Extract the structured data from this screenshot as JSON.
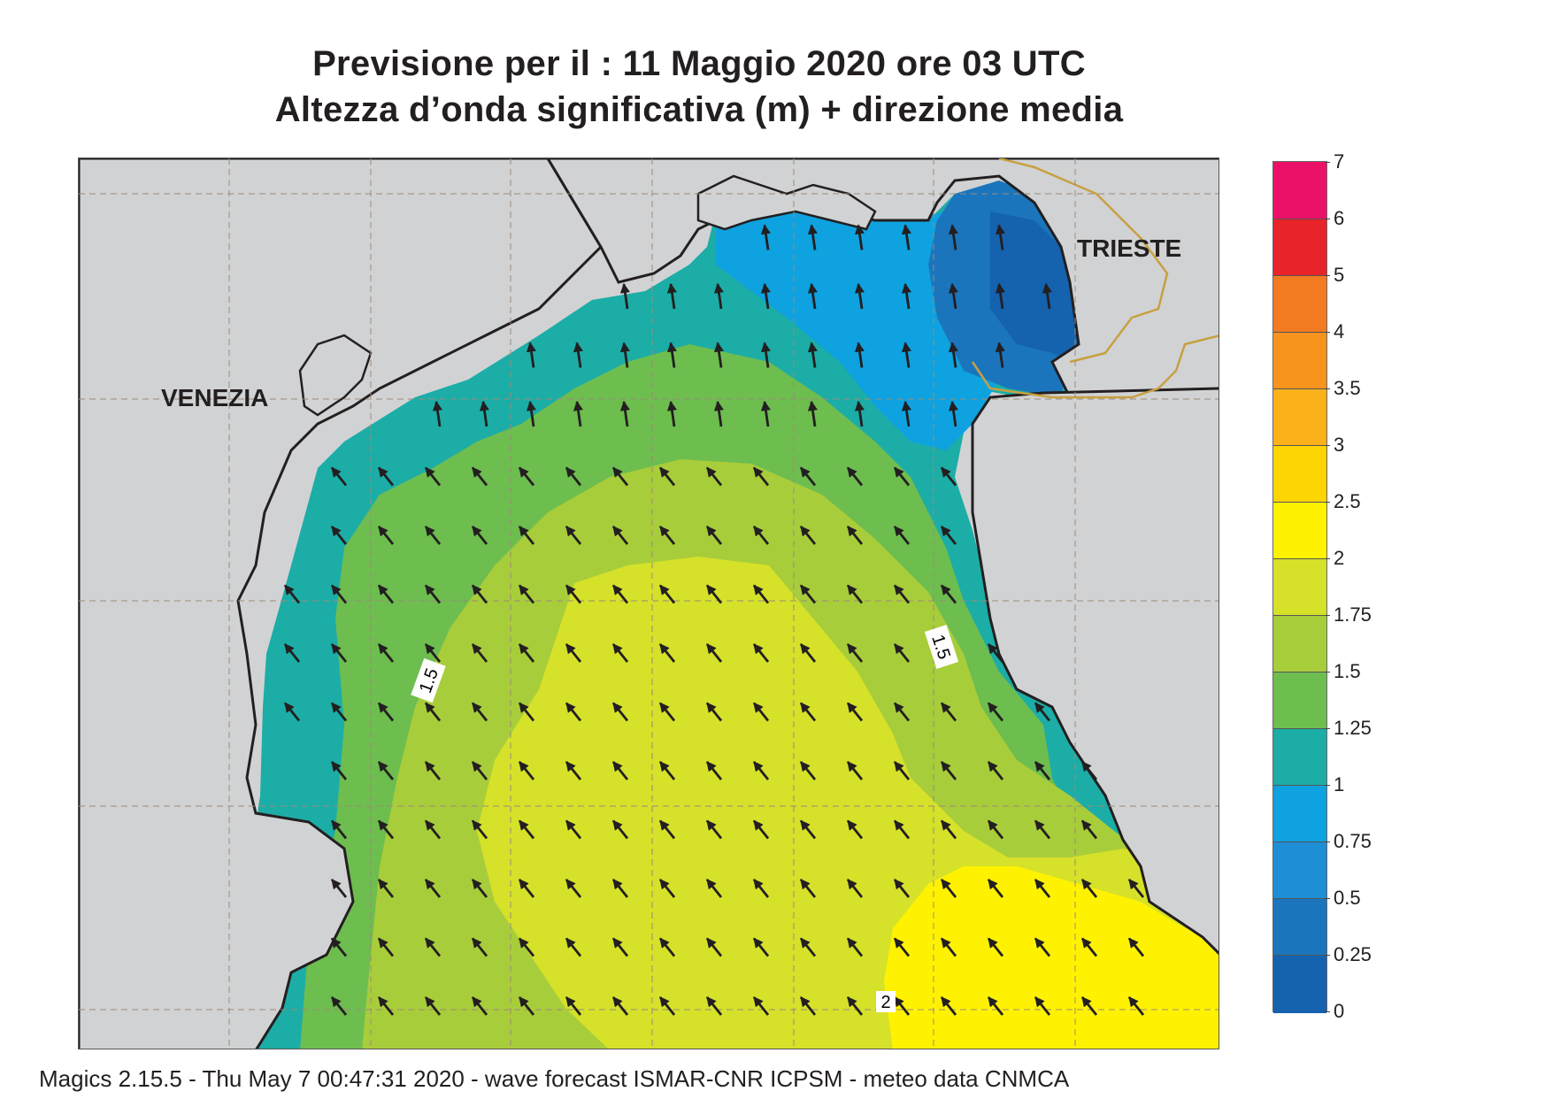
{
  "title": {
    "line1": "Previsione per il  :  11   Maggio  2020   ore 03 UTC",
    "line2": "Altezza d’onda significativa (m) + direzione media"
  },
  "map": {
    "cities": [
      {
        "name": "VENEZIA"
      },
      {
        "name": "TRIESTE"
      }
    ],
    "contour_labels": [
      "1.5",
      "1.5",
      "2"
    ],
    "arrow_direction": "north-west"
  },
  "legend": {
    "labels": [
      "7",
      "6",
      "5",
      "4",
      "3.5",
      "3",
      "2.5",
      "2",
      "1.75",
      "1.5",
      "1.25",
      "1",
      "0.75",
      "0.5",
      "0.25",
      "0"
    ],
    "colors": [
      "#ec1168",
      "#e8232a",
      "#f47a21",
      "#f7941d",
      "#fbb21a",
      "#fdd503",
      "#fff200",
      "#d6e12a",
      "#a8cd3a",
      "#6ebd4f",
      "#1cada7",
      "#0ea2e0",
      "#1e8ed6",
      "#1b75bc",
      "#1562ae"
    ]
  },
  "colors": {
    "land": "#d1d2d4",
    "coast": "#231f20",
    "border": "#c8a040",
    "grid": "#9b8c7a"
  },
  "footer": "Magics 2.15.5 - Thu May  7 00:47:31 2020 - wave forecast  ISMAR-CNR  ICPSM - meteo data   CNMCA"
}
